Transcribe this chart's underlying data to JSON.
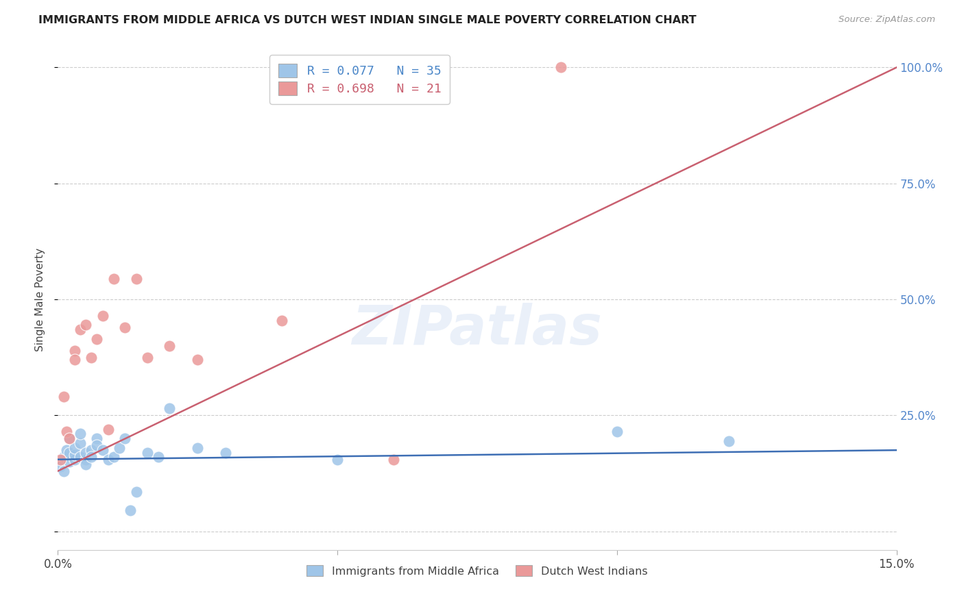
{
  "title": "IMMIGRANTS FROM MIDDLE AFRICA VS DUTCH WEST INDIAN SINGLE MALE POVERTY CORRELATION CHART",
  "source": "Source: ZipAtlas.com",
  "ylabel": "Single Male Poverty",
  "xlim": [
    0.0,
    0.15
  ],
  "ylim": [
    -0.04,
    1.04
  ],
  "yticks": [
    0.0,
    0.25,
    0.5,
    0.75,
    1.0
  ],
  "ytick_right_labels": [
    "",
    "25.0%",
    "50.0%",
    "75.0%",
    "100.0%"
  ],
  "xtick_positions": [
    0.0,
    0.05,
    0.1,
    0.15
  ],
  "xtick_labels": [
    "0.0%",
    "",
    "",
    "15.0%"
  ],
  "legend_label1": "Immigrants from Middle Africa",
  "legend_label2": "Dutch West Indians",
  "R1": 0.077,
  "N1": 35,
  "R2": 0.698,
  "N2": 21,
  "blue_color": "#9fc5e8",
  "pink_color": "#ea9999",
  "blue_line_color": "#3d6eb4",
  "pink_line_color": "#c96070",
  "text_blue": "#4a86c8",
  "text_pink": "#c96070",
  "right_axis_color": "#5588cc",
  "watermark_text": "ZIPatlas",
  "blue_scatter_x": [
    0.0005,
    0.001,
    0.001,
    0.0015,
    0.002,
    0.002,
    0.002,
    0.003,
    0.003,
    0.003,
    0.004,
    0.004,
    0.004,
    0.005,
    0.005,
    0.005,
    0.006,
    0.006,
    0.007,
    0.007,
    0.008,
    0.009,
    0.01,
    0.011,
    0.012,
    0.013,
    0.014,
    0.016,
    0.018,
    0.02,
    0.025,
    0.03,
    0.05,
    0.1,
    0.12
  ],
  "blue_scatter_y": [
    0.14,
    0.16,
    0.13,
    0.175,
    0.15,
    0.17,
    0.2,
    0.155,
    0.165,
    0.18,
    0.16,
    0.19,
    0.21,
    0.155,
    0.17,
    0.145,
    0.175,
    0.16,
    0.2,
    0.185,
    0.175,
    0.155,
    0.16,
    0.18,
    0.2,
    0.045,
    0.085,
    0.17,
    0.16,
    0.265,
    0.18,
    0.17,
    0.155,
    0.215,
    0.195
  ],
  "pink_scatter_x": [
    0.0005,
    0.001,
    0.0015,
    0.002,
    0.003,
    0.003,
    0.004,
    0.005,
    0.006,
    0.007,
    0.008,
    0.009,
    0.01,
    0.012,
    0.014,
    0.016,
    0.02,
    0.025,
    0.04,
    0.06,
    0.09
  ],
  "pink_scatter_y": [
    0.155,
    0.29,
    0.215,
    0.2,
    0.39,
    0.37,
    0.435,
    0.445,
    0.375,
    0.415,
    0.465,
    0.22,
    0.545,
    0.44,
    0.545,
    0.375,
    0.4,
    0.37,
    0.455,
    0.155,
    1.0
  ],
  "blue_regline_x": [
    0.0,
    0.15
  ],
  "blue_regline_y": [
    0.155,
    0.175
  ],
  "pink_regline_x": [
    0.0,
    0.15
  ],
  "pink_regline_y": [
    0.13,
    1.0
  ]
}
